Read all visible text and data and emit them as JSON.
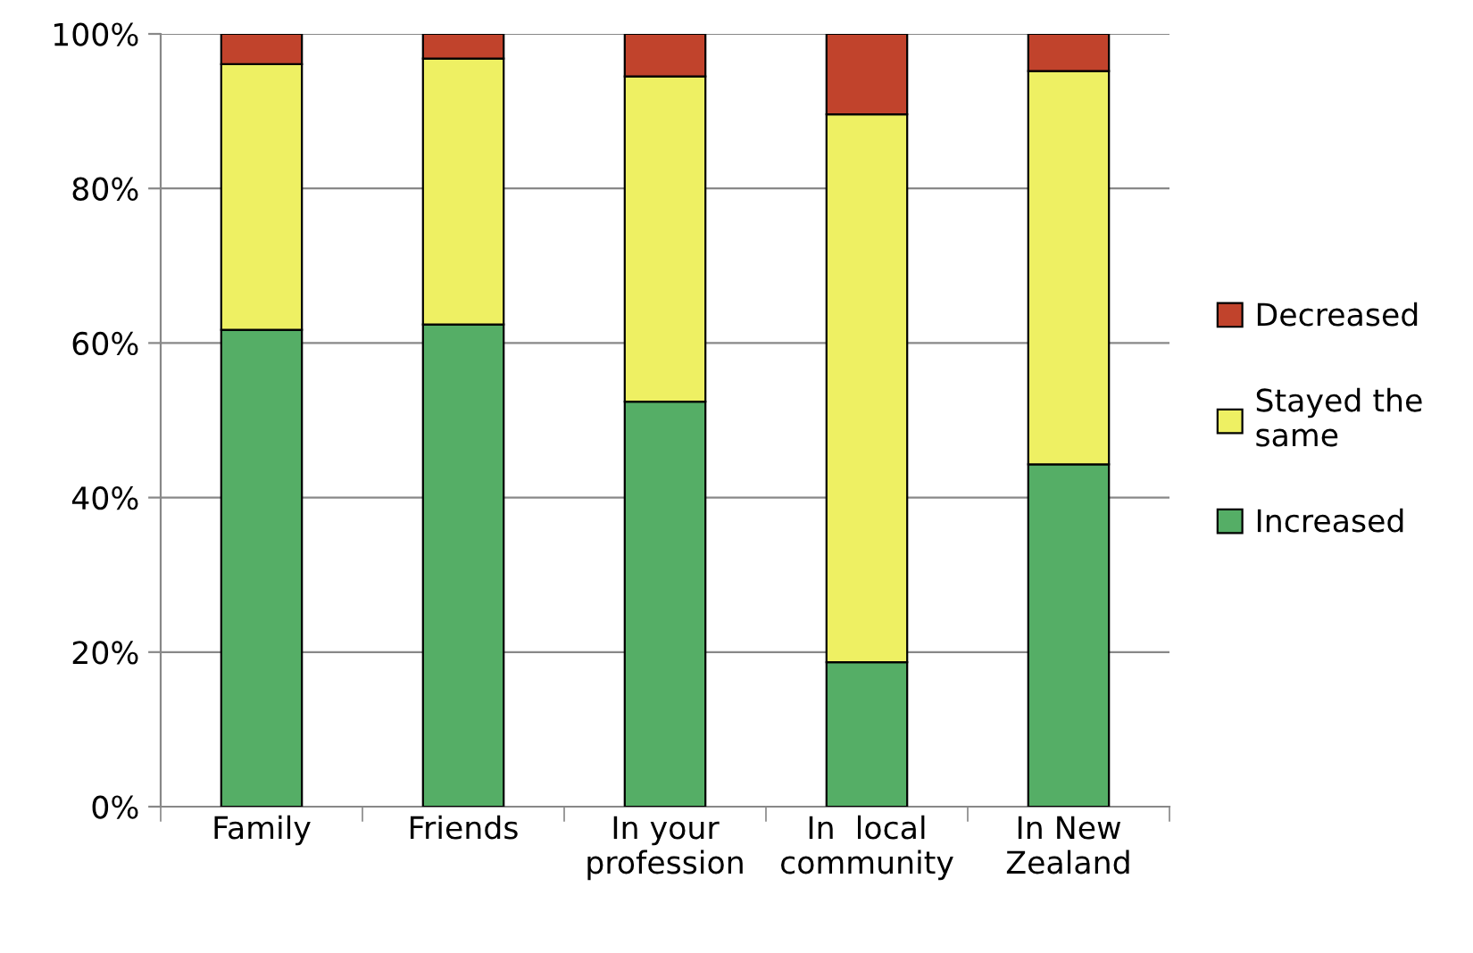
{
  "chart_data": {
    "type": "bar",
    "stacked": true,
    "categories": [
      "Family",
      "Friends",
      "In your\nprofession",
      "In  local\ncommunity",
      "In New\nZealand"
    ],
    "series": [
      {
        "name": "Increased",
        "color": "#55ae66",
        "values": [
          61.7,
          62.4,
          52.4,
          18.7,
          44.3
        ]
      },
      {
        "name": "Stayed the\nsame",
        "color": "#eef063",
        "values": [
          34.4,
          34.4,
          42.1,
          70.9,
          50.9
        ]
      },
      {
        "name": "Decreased",
        "color": "#c1432c",
        "values": [
          3.9,
          3.2,
          5.5,
          10.4,
          4.8
        ]
      }
    ],
    "ylim": [
      0,
      100
    ],
    "yticks": [
      {
        "value": 0,
        "label": "0%"
      },
      {
        "value": 20,
        "label": "20%"
      },
      {
        "value": 40,
        "label": "40%"
      },
      {
        "value": 60,
        "label": "60%"
      },
      {
        "value": 80,
        "label": "80%"
      },
      {
        "value": 100,
        "label": "100%"
      }
    ],
    "grid": "y",
    "legend": "right"
  }
}
